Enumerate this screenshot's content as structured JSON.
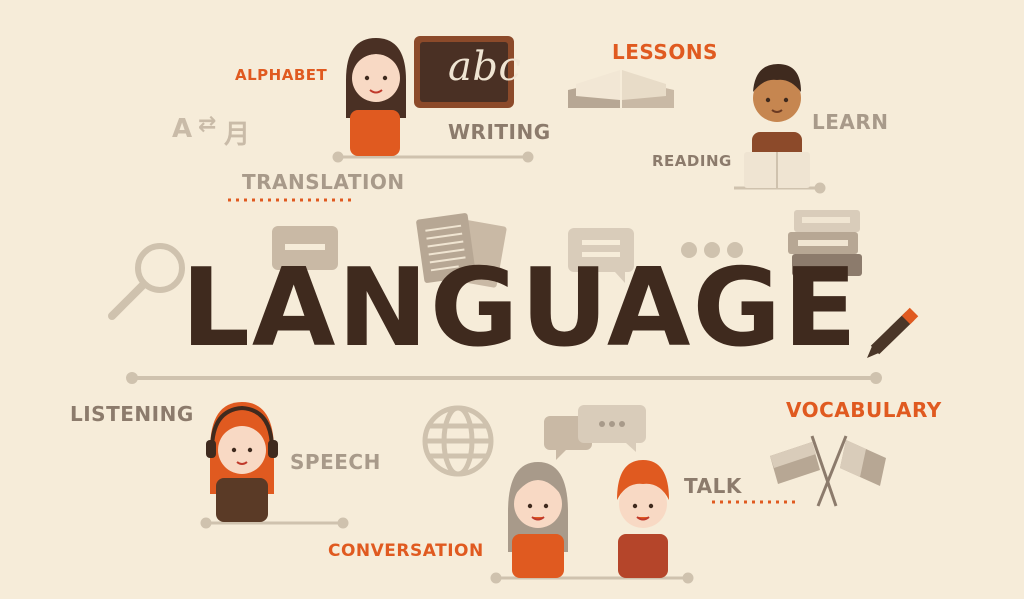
{
  "title": "LANGUAGE",
  "labels": {
    "alphabet": "ALPHABET",
    "writing": "WRITING",
    "lessons": "LESSONS",
    "learn": "LEARN",
    "reading": "READING",
    "translation": "TRANSLATION",
    "listening": "LISTENING",
    "speech": "SPEECH",
    "vocabulary": "VOCABULARY",
    "talk": "TALK",
    "conversation": "CONVERSATION"
  },
  "board_text": "abc",
  "translate_glyph": {
    "from": "A",
    "to": "月"
  },
  "colors": {
    "background": "#f6ecd9",
    "title": "#3f2a1e",
    "accent": "#e05a20",
    "muted": "#a89a8a"
  },
  "icons": [
    "magnifier-icon",
    "speech-bubble-icon",
    "papers-icon",
    "books-stack-icon",
    "pencil-icon",
    "globe-icon",
    "flags-icon",
    "open-book-icon",
    "chalkboard-icon",
    "translate-icon"
  ]
}
